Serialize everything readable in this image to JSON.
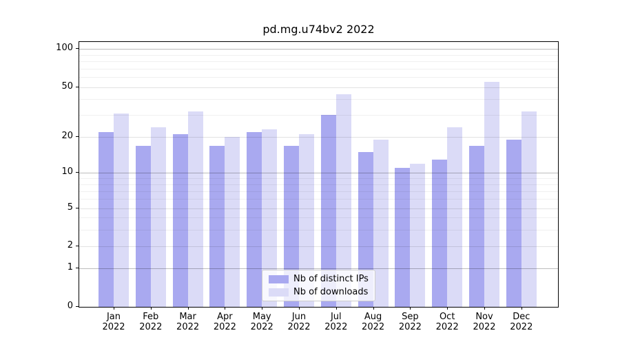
{
  "chart_data": {
    "type": "bar",
    "title": "pd.mg.u74bv2 2022",
    "categories": [
      "Jan",
      "Feb",
      "Mar",
      "Apr",
      "May",
      "Jun",
      "Jul",
      "Aug",
      "Sep",
      "Oct",
      "Nov",
      "Dec"
    ],
    "category_year": "2022",
    "series": [
      {
        "name": "Nb of distinct IPs",
        "color": "#a9a9f0",
        "values": [
          22,
          17,
          21,
          17,
          22,
          17,
          30,
          15,
          11,
          13,
          17,
          19
        ]
      },
      {
        "name": "Nb of downloads",
        "color": "#dbdbf7",
        "values": [
          31,
          24,
          32,
          20,
          23,
          21,
          44,
          19,
          12,
          24,
          55,
          32
        ]
      }
    ],
    "yaxis": {
      "scale": "symlog",
      "major_ticks": [
        0,
        1,
        2,
        5,
        10,
        20,
        50,
        100
      ],
      "major_tick_labels": [
        "0",
        "1",
        "2",
        "5",
        "10",
        "20",
        "50",
        "100"
      ],
      "minor_ticks": [
        3,
        4,
        6,
        7,
        8,
        9,
        30,
        40,
        60,
        70,
        80,
        90
      ],
      "range": [
        0,
        113
      ]
    },
    "grid": true,
    "legend": {
      "position": "lower center",
      "entries": [
        "Nb of distinct IPs",
        "Nb of downloads"
      ]
    }
  }
}
